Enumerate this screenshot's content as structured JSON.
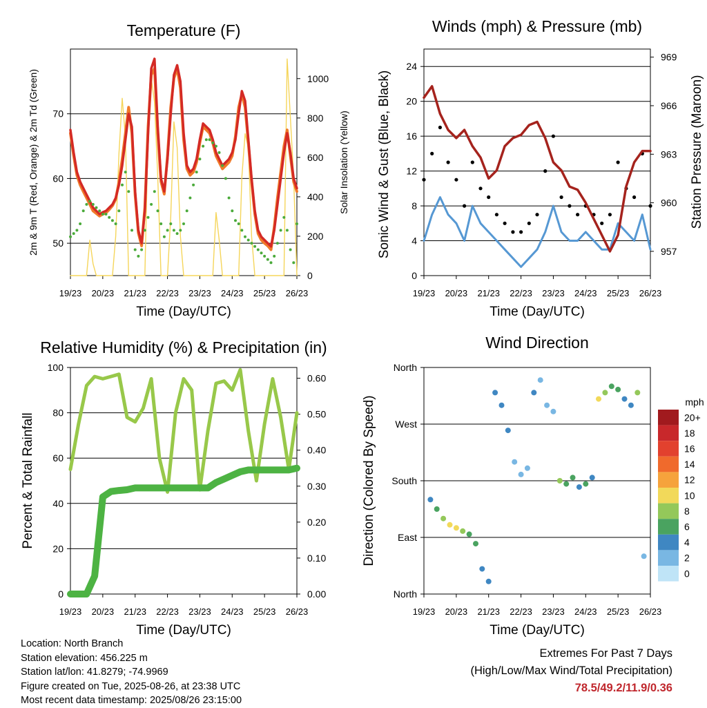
{
  "colors": {
    "temp_2m": "#d42a25",
    "temp_9m": "#f07a2a",
    "dewpoint": "#4aaa3a",
    "solar": "#f5d55a",
    "wind": "#5698d3",
    "gust": "#000000",
    "pressure": "#a5231d",
    "rh": "#98c84a",
    "precip": "#4db343",
    "extremes": "#c0272d"
  },
  "time_ticks": [
    "19/23",
    "20/23",
    "21/23",
    "22/23",
    "23/23",
    "24/23",
    "25/23",
    "26/23"
  ],
  "charts": {
    "temperature": {
      "title": "Temperature (F)",
      "xlabel": "Time (Day/UTC)",
      "ylabel_left": "2m & 9m T (Red, Orange) & 2m Td (Green)",
      "ylabel_right": "Solar Insolation (Yellow)",
      "yticks_left": [
        "50",
        "60",
        "70"
      ],
      "yticks_right": [
        "0",
        "200",
        "400",
        "600",
        "800",
        "1000"
      ]
    },
    "winds": {
      "title": "Winds (mph) & Pressure (mb)",
      "xlabel": "Time (Day/UTC)",
      "ylabel_left": "Sonic Wind & Gust (Blue, Black)",
      "ylabel_right": "Station Pressure (Maroon)",
      "yticks_left": [
        "0",
        "4",
        "8",
        "12",
        "16",
        "20",
        "24"
      ],
      "yticks_right": [
        "957",
        "960",
        "963",
        "966",
        "969"
      ]
    },
    "humidity": {
      "title": "Relative Humidity (%) & Precipitation (in)",
      "xlabel": "Time (Day/UTC)",
      "ylabel_left": "Percent & Total Rainfall",
      "yticks_left": [
        "0",
        "20",
        "40",
        "60",
        "80",
        "100"
      ],
      "yticks_right": [
        "0.00",
        "0.10",
        "0.20",
        "0.30",
        "0.40",
        "0.50",
        "0.60"
      ]
    },
    "direction": {
      "title": "Wind Direction",
      "xlabel": "Time (Day/UTC)",
      "ylabel_left": "Direction (Colored By Speed)",
      "yticks_left": [
        "North",
        "East",
        "South",
        "West",
        "North"
      ],
      "legend_title": "mph",
      "legend_labels": [
        "20+",
        "18",
        "16",
        "14",
        "12",
        "10",
        "8",
        "6",
        "4",
        "2",
        "0"
      ],
      "legend_colors": [
        "#a11a1e",
        "#c8282b",
        "#e2412e",
        "#f06a2c",
        "#f6a33c",
        "#f2d95a",
        "#94c85a",
        "#4aa360",
        "#3f87c2",
        "#79b7e3",
        "#bfe4f7"
      ]
    }
  },
  "chart_data": [
    {
      "type": "line",
      "title": "Temperature (F)",
      "xlabel": "Time (Day/UTC)",
      "ylabel": "2m & 9m T (Red, Orange) & 2m Td (Green)",
      "ylim": [
        45,
        80
      ],
      "y2lim": [
        0,
        1150
      ],
      "x": [
        0,
        0.1,
        0.2,
        0.3,
        0.4,
        0.5,
        0.6,
        0.7,
        0.8,
        0.9,
        1.0,
        1.1,
        1.2,
        1.3,
        1.4,
        1.5,
        1.6,
        1.7,
        1.8,
        1.9,
        2.0,
        2.1,
        2.2,
        2.3,
        2.4,
        2.5,
        2.6,
        2.7,
        2.8,
        2.9,
        3.0,
        3.1,
        3.2,
        3.3,
        3.4,
        3.5,
        3.6,
        3.7,
        3.8,
        3.9,
        4.0,
        4.1,
        4.2,
        4.3,
        4.4,
        4.5,
        4.6,
        4.7,
        4.8,
        4.9,
        5.0,
        5.1,
        5.2,
        5.3,
        5.4,
        5.5,
        5.6,
        5.7,
        5.8,
        5.9,
        6.0,
        6.1,
        6.2,
        6.3,
        6.4,
        6.5,
        6.6,
        6.7,
        6.8,
        6.9,
        7.0
      ],
      "series": [
        {
          "values": [
            67.5,
            64,
            61,
            59.5,
            58.5,
            57.5,
            56.5,
            55.5,
            55,
            54.5,
            54.8,
            55,
            55.5,
            56,
            57,
            59,
            62,
            66,
            70,
            68,
            58,
            52,
            50,
            55,
            67,
            77,
            78.5,
            68,
            60,
            58,
            63,
            70,
            76,
            77.5,
            75,
            67,
            62,
            61,
            61.5,
            63,
            66,
            68.5,
            68,
            67.5,
            66,
            64,
            63,
            62,
            62.5,
            63,
            64,
            66,
            70,
            73.5,
            72,
            66,
            60,
            55,
            52,
            51,
            50.5,
            50,
            49.5,
            52,
            56,
            60,
            64,
            67,
            64,
            60,
            58.5
          ]
        },
        {
          "values": [
            67,
            63.5,
            60.5,
            59,
            58,
            57,
            56,
            55,
            54.6,
            54.2,
            54.5,
            54.7,
            55.2,
            55.8,
            56.8,
            59.5,
            63,
            67,
            71,
            67,
            57.5,
            51.6,
            49.6,
            55.5,
            68,
            76,
            77,
            67,
            59.5,
            57.6,
            63.5,
            71,
            75.5,
            77,
            74,
            66,
            61.5,
            60.5,
            61,
            62.5,
            65.5,
            68,
            67.5,
            67,
            65.5,
            63.5,
            62.5,
            61.5,
            62,
            62.5,
            63.5,
            66.5,
            71,
            73,
            71,
            65.5,
            59.5,
            54.5,
            51.5,
            50.5,
            50,
            49.6,
            49,
            52.5,
            57,
            61,
            65,
            67.5,
            63.5,
            59.5,
            58
          ]
        },
        {
          "values": [
            51,
            51.5,
            52,
            53,
            55,
            56,
            56.5,
            56,
            55.5,
            55,
            54.5,
            54.5,
            54,
            53.5,
            53,
            55,
            59,
            61,
            58,
            52,
            49,
            48,
            49,
            52,
            54,
            56,
            58,
            55,
            53,
            51,
            52,
            53,
            52,
            51.5,
            52,
            53,
            55,
            57,
            59,
            61,
            63,
            65,
            66,
            66,
            65.5,
            65,
            64,
            62,
            60,
            57,
            55,
            53.5,
            53,
            52,
            51,
            50.5,
            50,
            49.5,
            49,
            48.5,
            48,
            47.5,
            47,
            48,
            50,
            52,
            54,
            52,
            49,
            47,
            53
          ]
        },
        {
          "values": [
            0,
            0,
            0,
            0,
            0,
            0,
            180,
            60,
            0,
            0,
            0,
            0,
            0,
            0,
            200,
            620,
            900,
            700,
            0,
            0,
            0,
            0,
            0,
            0,
            720,
            1000,
            880,
            500,
            0,
            0,
            0,
            300,
            780,
            650,
            200,
            0,
            0,
            0,
            0,
            0,
            0,
            0,
            0,
            0,
            0,
            320,
            180,
            0,
            0,
            0,
            0,
            0,
            0,
            500,
            720,
            650,
            200,
            0,
            0,
            0,
            0,
            0,
            0,
            0,
            0,
            0,
            0,
            1100,
            800,
            500,
            0
          ]
        }
      ]
    },
    {
      "type": "line",
      "title": "Winds (mph) & Pressure (mb)",
      "xlabel": "Time (Day/UTC)",
      "ylabel": "Sonic Wind & Gust (Blue, Black)",
      "ylim": [
        0,
        26
      ],
      "y2lim": [
        955.5,
        969.5
      ],
      "x": [
        0,
        0.25,
        0.5,
        0.75,
        1.0,
        1.25,
        1.5,
        1.75,
        2.0,
        2.25,
        2.5,
        2.75,
        3.0,
        3.25,
        3.5,
        3.75,
        4.0,
        4.25,
        4.5,
        4.75,
        5.0,
        5.25,
        5.5,
        5.75,
        6.0,
        6.25,
        6.5,
        6.75,
        7.0
      ],
      "series": [
        {
          "values": [
            4,
            7,
            9,
            7,
            6,
            4,
            8,
            6,
            5,
            4,
            3,
            2,
            1,
            2,
            3,
            5,
            8,
            5,
            4,
            4,
            5,
            4,
            3,
            3,
            6,
            5,
            4,
            7,
            3
          ]
        },
        {
          "values": [
            11,
            14,
            17,
            13,
            11,
            8,
            13,
            10,
            9,
            7,
            6,
            5,
            5,
            6,
            7,
            12,
            16,
            9,
            8,
            7,
            8,
            7,
            6,
            7,
            13,
            10,
            9,
            14,
            8
          ]
        },
        {
          "values": [
            966.5,
            967.2,
            965.5,
            964.5,
            964,
            964.5,
            963.5,
            962.8,
            961.5,
            962,
            963.5,
            964,
            964.2,
            964.8,
            965,
            964,
            962.5,
            962,
            961,
            960.8,
            960,
            959,
            958,
            957,
            958,
            961,
            962.5,
            963.2,
            963.2
          ]
        }
      ]
    },
    {
      "type": "line",
      "title": "Relative Humidity (%) & Precipitation (in)",
      "xlabel": "Time (Day/UTC)",
      "ylabel": "Percent & Total Rainfall",
      "ylim": [
        0,
        100
      ],
      "y2lim": [
        0,
        0.63
      ],
      "x": [
        0,
        0.25,
        0.5,
        0.75,
        1.0,
        1.25,
        1.5,
        1.75,
        2.0,
        2.25,
        2.5,
        2.75,
        3.0,
        3.25,
        3.5,
        3.75,
        4.0,
        4.25,
        4.5,
        4.75,
        5.0,
        5.25,
        5.5,
        5.75,
        6.0,
        6.25,
        6.5,
        6.75,
        7.0
      ],
      "series": [
        {
          "values": [
            55,
            75,
            92,
            96,
            95,
            96,
            97,
            78,
            76,
            82,
            95,
            60,
            45,
            80,
            95,
            90,
            46,
            72,
            93,
            94,
            90,
            99,
            72,
            50,
            75,
            95,
            78,
            55,
            80
          ]
        },
        {
          "values": [
            0,
            0,
            0,
            0.05,
            0.27,
            0.285,
            0.288,
            0.29,
            0.295,
            0.295,
            0.295,
            0.295,
            0.295,
            0.295,
            0.295,
            0.295,
            0.295,
            0.295,
            0.31,
            0.32,
            0.33,
            0.34,
            0.345,
            0.345,
            0.345,
            0.345,
            0.345,
            0.345,
            0.35
          ]
        }
      ]
    },
    {
      "type": "scatter",
      "title": "Wind Direction",
      "xlabel": "Time (Day/UTC)",
      "ylabel": "Direction (Colored By Speed)",
      "ylim": [
        0,
        360
      ],
      "x": [
        0.2,
        0.4,
        0.6,
        0.8,
        1.0,
        1.2,
        1.4,
        1.6,
        1.8,
        2.0,
        2.2,
        2.4,
        2.6,
        2.8,
        3.0,
        3.2,
        3.4,
        3.6,
        3.8,
        4.0,
        4.2,
        4.4,
        4.6,
        4.8,
        5.0,
        5.2,
        5.4,
        5.6,
        5.8,
        6.0,
        6.2,
        6.4,
        6.6,
        6.8
      ],
      "series": [
        {
          "values": [
            150,
            135,
            120,
            110,
            105,
            100,
            95,
            80,
            40,
            20,
            320,
            300,
            260,
            210,
            190,
            200,
            320,
            340,
            300,
            290,
            180,
            175,
            185,
            170,
            175,
            185,
            310,
            320,
            330,
            325,
            310,
            300,
            320,
            60
          ]
        },
        {
          "values": [
            4,
            5,
            8,
            10,
            9,
            7,
            6,
            5,
            4,
            3,
            3,
            4,
            3,
            2,
            2,
            2,
            3,
            2,
            2,
            2,
            8,
            6,
            5,
            4,
            5,
            3,
            9,
            8,
            6,
            5,
            4,
            3,
            8,
            2
          ]
        }
      ]
    }
  ],
  "footer": {
    "location": "Location: North Branch",
    "elevation": "Station elevation: 456.225 m",
    "latlon": "Station lat/lon: 41.8279; -74.9969",
    "created": "Figure created on Tue, 2025-08-26, at 23:38 UTC",
    "recent": "Most recent data timestamp: 2025/08/26 23:15:00",
    "extremes_title": "Extremes For Past 7 Days",
    "extremes_subtitle": "(High/Low/Max Wind/Total Precipitation)",
    "extremes_values": "78.5/49.2/11.9/0.36"
  }
}
